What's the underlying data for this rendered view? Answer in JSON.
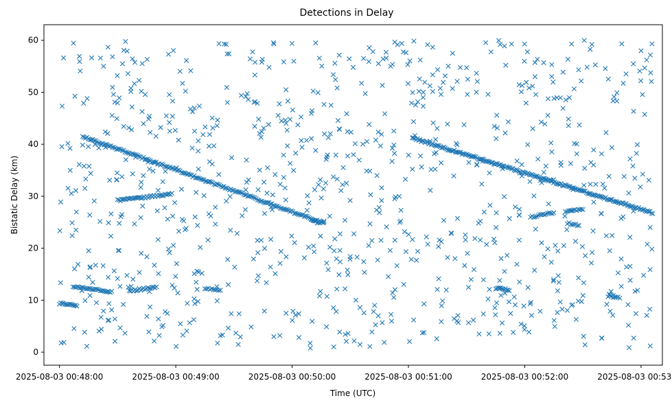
{
  "chart_data": {
    "type": "scatter",
    "title": "Detections in Delay",
    "xlabel": "Time (UTC)",
    "ylabel": "Bistatic Delay (km)",
    "marker": "x",
    "color": "#1f77b4",
    "xlim": [
      "2025-08-03 00:47:52",
      "2025-08-03 00:53:11"
    ],
    "ylim": [
      -2.5,
      63
    ],
    "x_ticks": [
      "2025-08-03 00:48:00",
      "2025-08-03 00:49:00",
      "2025-08-03 00:50:00",
      "2025-08-03 00:51:00",
      "2025-08-03 00:52:00",
      "2025-08-03 00:53:00"
    ],
    "y_ticks": [
      0,
      10,
      20,
      30,
      40,
      50,
      60
    ],
    "grid": false,
    "tracks": [
      {
        "x": [
          "2025-08-03 00:48:12",
          "2025-08-03 00:50:15"
        ],
        "y": [
          41.5,
          25.0
        ],
        "points": 170
      },
      {
        "x": [
          "2025-08-03 00:51:02",
          "2025-08-03 00:53:06"
        ],
        "y": [
          41.2,
          26.8
        ],
        "points": 190
      },
      {
        "x": [
          "2025-08-03 00:48:30",
          "2025-08-03 00:48:58"
        ],
        "y": [
          29.2,
          30.4
        ],
        "points": 40
      },
      {
        "x": [
          "2025-08-03 00:48:00",
          "2025-08-03 00:48:09"
        ],
        "y": [
          9.4,
          9.0
        ],
        "points": 14
      },
      {
        "x": [
          "2025-08-03 00:48:07",
          "2025-08-03 00:48:27"
        ],
        "y": [
          12.6,
          11.6
        ],
        "points": 28
      },
      {
        "x": [
          "2025-08-03 00:48:36",
          "2025-08-03 00:48:50"
        ],
        "y": [
          11.8,
          12.5
        ],
        "points": 20
      },
      {
        "x": [
          "2025-08-03 00:49:15",
          "2025-08-03 00:49:23"
        ],
        "y": [
          12.2,
          12.0
        ],
        "points": 10
      },
      {
        "x": [
          "2025-08-03 00:50:10",
          "2025-08-03 00:50:16"
        ],
        "y": [
          25.5,
          24.8
        ],
        "points": 8
      },
      {
        "x": [
          "2025-08-03 00:51:45",
          "2025-08-03 00:51:52"
        ],
        "y": [
          12.3,
          12.0
        ],
        "points": 12
      },
      {
        "x": [
          "2025-08-03 00:52:03",
          "2025-08-03 00:52:15"
        ],
        "y": [
          26.0,
          26.8
        ],
        "points": 16
      },
      {
        "x": [
          "2025-08-03 00:52:21",
          "2025-08-03 00:52:30"
        ],
        "y": [
          27.0,
          27.5
        ],
        "points": 12
      },
      {
        "x": [
          "2025-08-03 00:52:22",
          "2025-08-03 00:52:28"
        ],
        "y": [
          24.8,
          24.4
        ],
        "points": 8
      },
      {
        "x": [
          "2025-08-03 00:52:43",
          "2025-08-03 00:52:49"
        ],
        "y": [
          10.8,
          10.4
        ],
        "points": 8
      }
    ],
    "clutter": {
      "x_range": [
        "2025-08-03 00:48:00",
        "2025-08-03 00:53:06"
      ],
      "y_range": [
        0.5,
        60
      ],
      "points": 900
    }
  }
}
